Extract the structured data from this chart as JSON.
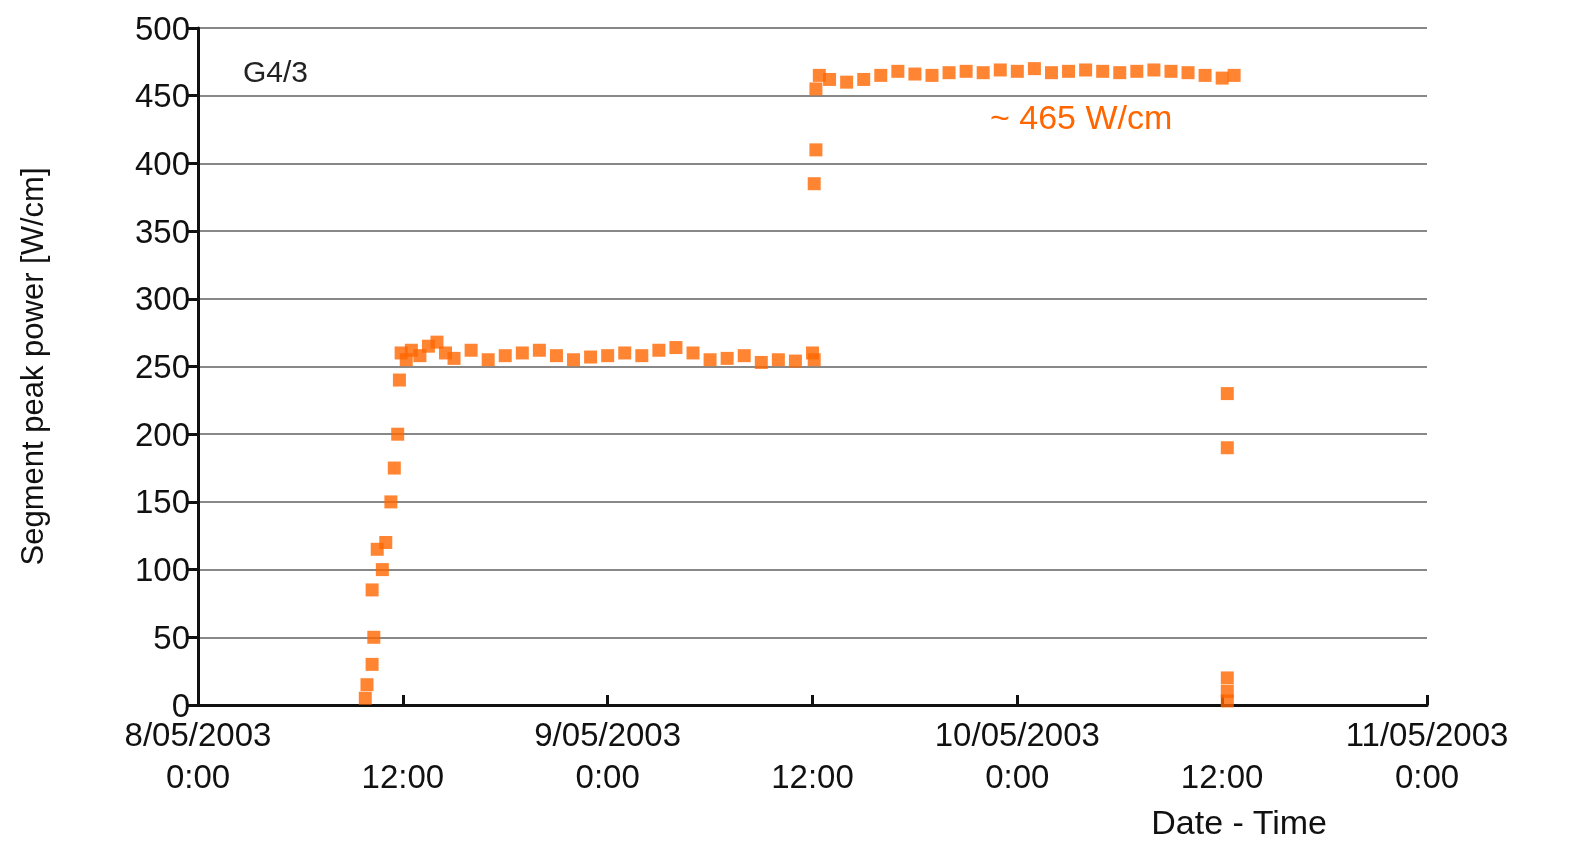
{
  "chart_data": {
    "type": "scatter",
    "xlabel": "Date - Time",
    "ylabel": "Segment peak power [W/cm]",
    "annotations": [
      "G4/3",
      "~ 465 W/cm"
    ],
    "xlim": [
      "2003-05-08T00:00",
      "2003-05-11T00:00"
    ],
    "xticks": [
      {
        "value": "2003-05-08T00:00",
        "label": "8/05/2003 0:00"
      },
      {
        "value": "2003-05-08T12:00",
        "label": "12:00"
      },
      {
        "value": "2003-05-09T00:00",
        "label": "9/05/2003 0:00"
      },
      {
        "value": "2003-05-09T12:00",
        "label": "12:00"
      },
      {
        "value": "2003-05-10T00:00",
        "label": "10/05/2003 0:00"
      },
      {
        "value": "2003-05-10T12:00",
        "label": "12:00"
      },
      {
        "value": "2003-05-11T00:00",
        "label": "11/05/2003 0:00"
      }
    ],
    "ylim": [
      0,
      500
    ],
    "yticks": [
      0,
      50,
      100,
      150,
      200,
      250,
      300,
      350,
      400,
      450,
      500
    ],
    "grid": "y",
    "marker": "square",
    "series": [
      {
        "color": "#ff6600",
        "x": [
          "2003-05-08T09:48",
          "2003-05-08T09:54",
          "2003-05-08T10:12",
          "2003-05-08T10:18",
          "2003-05-08T10:12",
          "2003-05-08T10:30",
          "2003-05-08T10:48",
          "2003-05-08T11:00",
          "2003-05-08T11:18",
          "2003-05-08T11:30",
          "2003-05-08T11:42",
          "2003-05-08T11:48",
          "2003-05-08T11:54",
          "2003-05-08T12:12",
          "2003-05-08T12:30",
          "2003-05-08T13:00",
          "2003-05-08T13:30",
          "2003-05-08T14:00",
          "2003-05-08T14:30",
          "2003-05-08T15:00",
          "2003-05-08T16:00",
          "2003-05-08T17:00",
          "2003-05-08T18:00",
          "2003-05-08T19:00",
          "2003-05-08T20:00",
          "2003-05-08T21:00",
          "2003-05-08T22:00",
          "2003-05-08T23:00",
          "2003-05-09T00:00",
          "2003-05-09T01:00",
          "2003-05-09T02:00",
          "2003-05-09T03:00",
          "2003-05-09T04:00",
          "2003-05-09T05:00",
          "2003-05-09T06:00",
          "2003-05-09T07:00",
          "2003-05-09T08:00",
          "2003-05-09T09:00",
          "2003-05-09T10:00",
          "2003-05-09T11:00",
          "2003-05-09T12:00",
          "2003-05-09T12:06",
          "2003-05-09T12:06",
          "2003-05-09T12:12",
          "2003-05-09T12:12",
          "2003-05-09T12:24",
          "2003-05-09T13:00",
          "2003-05-09T14:00",
          "2003-05-09T15:00",
          "2003-05-09T16:00",
          "2003-05-09T17:00",
          "2003-05-09T18:00",
          "2003-05-09T19:00",
          "2003-05-09T20:00",
          "2003-05-09T21:00",
          "2003-05-09T22:00",
          "2003-05-09T23:00",
          "2003-05-10T00:00",
          "2003-05-10T01:00",
          "2003-05-10T02:00",
          "2003-05-10T03:00",
          "2003-05-10T04:00",
          "2003-05-10T05:00",
          "2003-05-10T06:00",
          "2003-05-10T07:00",
          "2003-05-10T08:00",
          "2003-05-10T09:00",
          "2003-05-10T10:00",
          "2003-05-10T11:00",
          "2003-05-10T12:00",
          "2003-05-10T12:42",
          "2003-05-10T12:18",
          "2003-05-10T12:18",
          "2003-05-10T12:18",
          "2003-05-10T12:18",
          "2003-05-10T12:18"
        ],
        "values": [
          5,
          15,
          30,
          50,
          85,
          115,
          100,
          120,
          150,
          175,
          200,
          240,
          260,
          255,
          262,
          258,
          265,
          268,
          260,
          256,
          262,
          255,
          258,
          260,
          262,
          258,
          255,
          257,
          258,
          260,
          258,
          262,
          264,
          260,
          255,
          256,
          258,
          253,
          255,
          254,
          260,
          255,
          385,
          410,
          455,
          465,
          462,
          460,
          462,
          465,
          468,
          466,
          465,
          467,
          468,
          467,
          469,
          468,
          470,
          467,
          468,
          469,
          468,
          467,
          468,
          469,
          468,
          467,
          465,
          463,
          465,
          230,
          190,
          20,
          10,
          3
        ]
      }
    ]
  }
}
